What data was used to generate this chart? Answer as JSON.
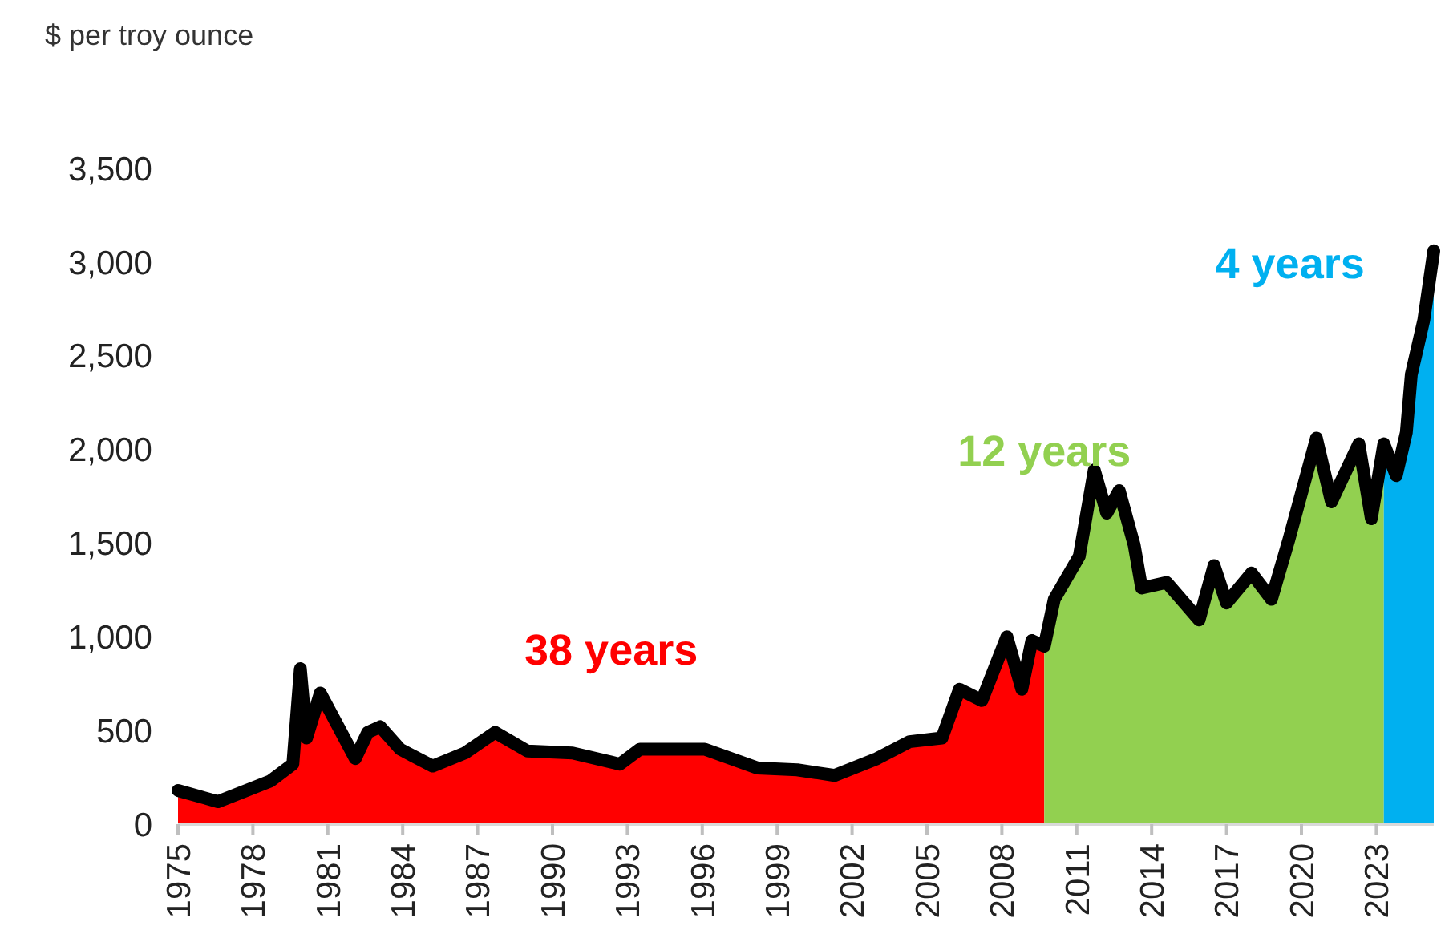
{
  "chart_data": {
    "type": "area",
    "ylabel": "$ per troy ounce",
    "xlim": [
      1975,
      2025.3
    ],
    "xticks": [
      1975,
      1978,
      1981,
      1984,
      1987,
      1990,
      1993,
      1996,
      1999,
      2002,
      2005,
      2008,
      2011,
      2014,
      2017,
      2020,
      2023
    ],
    "ylim": [
      0,
      3500
    ],
    "yticks": [
      0,
      {
        "value": 500,
        "label": "500"
      },
      {
        "value": 1000,
        "label": "1,000"
      },
      {
        "value": 1500,
        "label": "1,500"
      },
      {
        "value": 2000,
        "label": "2,000"
      },
      {
        "value": 2500,
        "label": "2,500"
      },
      {
        "value": 3000,
        "label": "3,000"
      },
      {
        "value": 3500,
        "label": "3,500"
      }
    ],
    "grid": false,
    "series": [
      {
        "type": "area",
        "color": "#ff0000",
        "x": [
          1975,
          1976.6,
          1978.7,
          1979.6,
          1979.9,
          1980.15,
          1980.7,
          1981.3,
          1982.1,
          1982.6,
          1983.1,
          1983.9,
          1985.2,
          1986.5,
          1987.7,
          1989.0,
          1990.8,
          1992.7,
          1993.5,
          1996.1,
          1998.2,
          1999.8,
          2001.3,
          2003.0,
          2004.3,
          2005.6,
          2006.3,
          2007.2,
          2008.2,
          2008.8,
          2009.2,
          2009.7
        ],
        "values": [
          180,
          120,
          230,
          320,
          830,
          460,
          700,
          550,
          350,
          490,
          520,
          400,
          310,
          380,
          490,
          390,
          380,
          320,
          400,
          400,
          300,
          290,
          260,
          350,
          440,
          460,
          720,
          660,
          1000,
          720,
          980,
          950
        ]
      },
      {
        "type": "area",
        "color": "#92d050",
        "x": [
          2009.7,
          2010.1,
          2011.1,
          2011.7,
          2012.2,
          2012.7,
          2013.3,
          2013.6,
          2014.6,
          2015.9,
          2016.5,
          2017.0,
          2018.0,
          2018.8,
          2019.5,
          2020.6,
          2021.2,
          2021.8,
          2022.3,
          2022.8,
          2023.3
        ],
        "values": [
          950,
          1200,
          1430,
          1890,
          1660,
          1780,
          1490,
          1260,
          1290,
          1090,
          1380,
          1180,
          1340,
          1200,
          1520,
          2060,
          1720,
          1890,
          2030,
          1630,
          2030
        ]
      },
      {
        "type": "area",
        "color": "#00b0f0",
        "x": [
          2023.3,
          2023.8,
          2024.2,
          2024.4,
          2024.9,
          2025.3
        ],
        "values": [
          2030,
          1860,
          2090,
          2400,
          2690,
          3060
        ]
      },
      {
        "type": "line",
        "color": "#000000",
        "x": [
          1975,
          1976.6,
          1978.7,
          1979.6,
          1979.9,
          1980.15,
          1980.7,
          1981.3,
          1982.1,
          1982.6,
          1983.1,
          1983.9,
          1985.2,
          1986.5,
          1987.7,
          1989.0,
          1990.8,
          1992.7,
          1993.5,
          1996.1,
          1998.2,
          1999.8,
          2001.3,
          2003.0,
          2004.3,
          2005.6,
          2006.3,
          2007.2,
          2008.2,
          2008.8,
          2009.2,
          2009.7,
          2010.1,
          2011.1,
          2011.7,
          2012.2,
          2012.7,
          2013.3,
          2013.6,
          2014.6,
          2015.9,
          2016.5,
          2017.0,
          2018.0,
          2018.8,
          2019.5,
          2020.6,
          2021.2,
          2021.8,
          2022.3,
          2022.8,
          2023.3,
          2023.8,
          2024.2,
          2024.4,
          2024.9,
          2025.3
        ],
        "values": [
          180,
          120,
          230,
          320,
          830,
          460,
          700,
          550,
          350,
          490,
          520,
          400,
          310,
          380,
          490,
          390,
          380,
          320,
          400,
          400,
          300,
          290,
          260,
          350,
          440,
          460,
          720,
          660,
          1000,
          720,
          980,
          950,
          1200,
          1430,
          1890,
          1660,
          1780,
          1490,
          1260,
          1290,
          1090,
          1380,
          1180,
          1340,
          1200,
          1520,
          2060,
          1720,
          1890,
          2030,
          1630,
          2030,
          1860,
          2090,
          2400,
          2690,
          3060
        ]
      }
    ],
    "annotations": [
      "38 years",
      "12 years",
      "4 years"
    ]
  }
}
